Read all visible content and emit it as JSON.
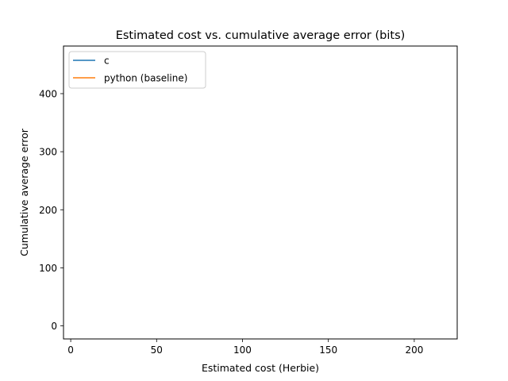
{
  "chart_data": {
    "type": "line",
    "title": "Estimated cost vs. cumulative average error (bits)",
    "xlabel": "Estimated cost (Herbie)",
    "ylabel": "Cumulative average error",
    "xlim": [
      -4.2,
      225
    ],
    "ylim": [
      -22.5,
      482
    ],
    "xticks": [
      0,
      50,
      100,
      150,
      200
    ],
    "yticks": [
      0,
      100,
      200,
      300,
      400
    ],
    "grid": false,
    "legend_position": "top-left",
    "series": [
      {
        "name": "c",
        "color": "#1f77b4",
        "x": [],
        "y": []
      },
      {
        "name": "python (baseline)",
        "color": "#ff7f0e",
        "x": [],
        "y": []
      }
    ]
  }
}
